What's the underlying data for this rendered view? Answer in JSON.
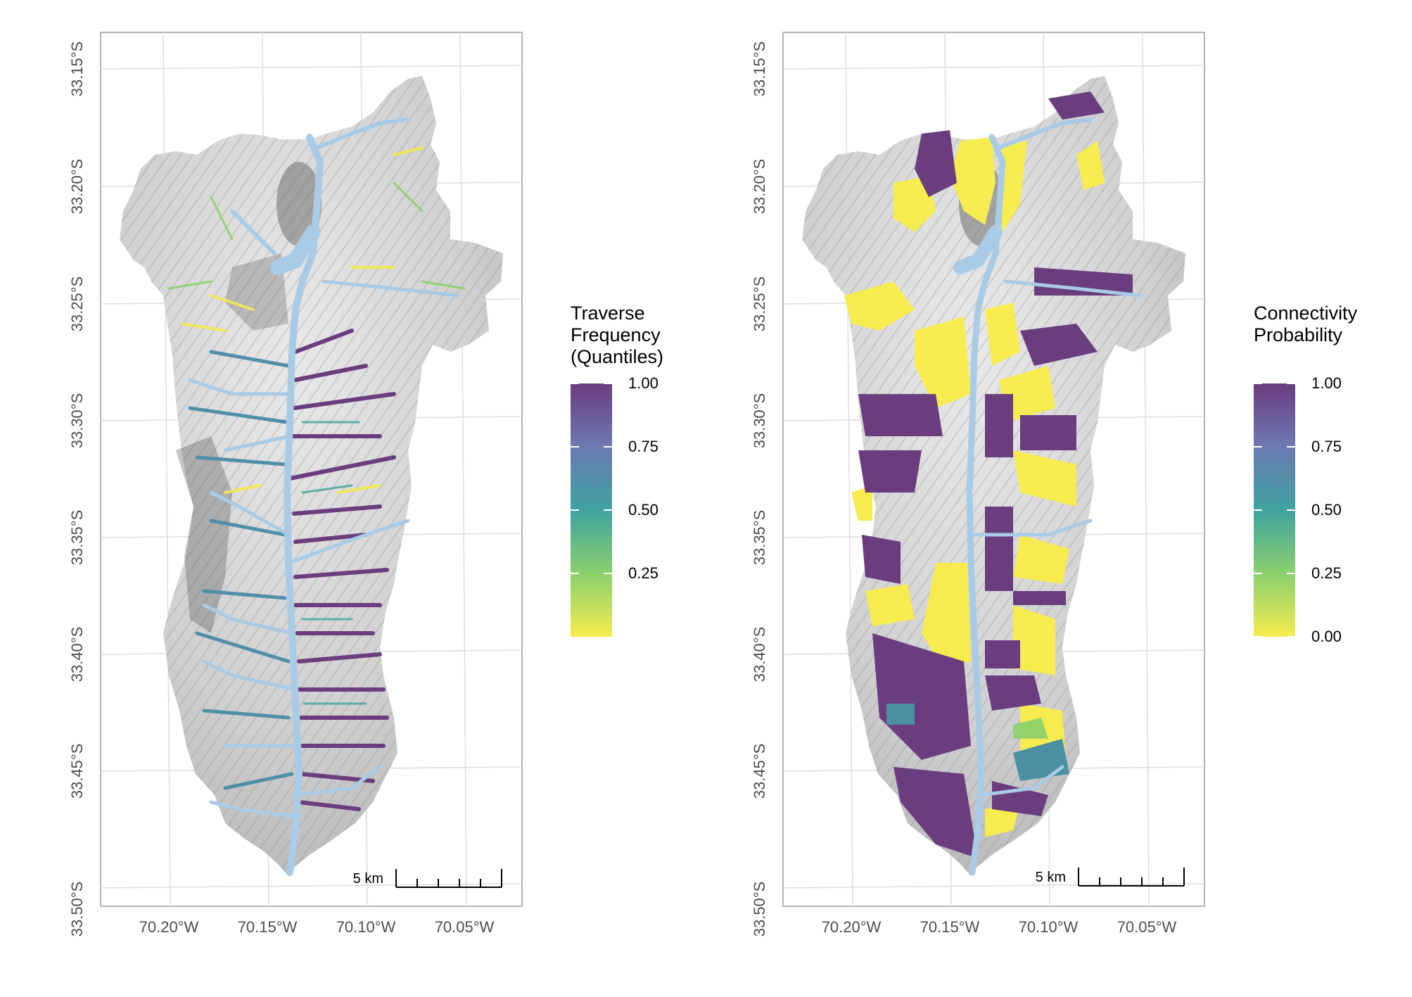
{
  "figure": {
    "left_panel": {
      "lat_labels": [
        "33.15°S",
        "33.20°S",
        "33.25°S",
        "33.30°S",
        "33.35°S",
        "33.40°S",
        "33.45°S",
        "33.50°S"
      ],
      "lon_labels": [
        "70.20°W",
        "70.15°W",
        "70.10°W",
        "70.05°W"
      ],
      "scale_bar_label": "5 km",
      "legend": {
        "title_lines": [
          "Traverse",
          "Frequency",
          "(Quantiles)"
        ],
        "labels": [
          "1.00",
          "0.75",
          "0.50",
          "0.25"
        ]
      }
    },
    "right_panel": {
      "lat_labels": [
        "33.15°S",
        "33.20°S",
        "33.25°S",
        "33.30°S",
        "33.35°S",
        "33.40°S",
        "33.45°S",
        "33.50°S"
      ],
      "lon_labels": [
        "70.20°W",
        "70.15°W",
        "70.10°W",
        "70.05°W"
      ],
      "scale_bar_label": "5 km",
      "legend": {
        "title_lines": [
          "Connectivity",
          "Probability"
        ],
        "labels": [
          "1.00",
          "0.75",
          "0.50",
          "0.25",
          "0.00"
        ]
      }
    }
  },
  "colors": {
    "viridis_top": "#6a3d7f",
    "viridis_mid": "#3e9fa0",
    "viridis_bottom": "#f2ea4f",
    "river": "#a9cbe6",
    "hillshade_light": "#f2f2f2",
    "hillshade_dark": "#9a9a9a"
  }
}
